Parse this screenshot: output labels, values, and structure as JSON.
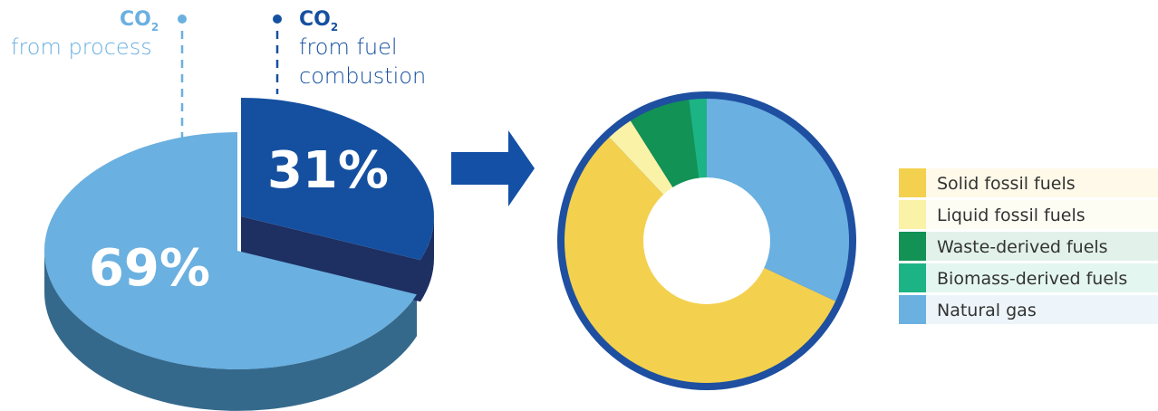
{
  "pie": {
    "co2_text": "CO",
    "co2_subscript": "2",
    "process_label": "from process",
    "fuel_label_line1": "from fuel",
    "fuel_label_line2": "combustion"
  },
  "colors": {
    "process": "#6AB0E0",
    "process_side": "#35698C",
    "combustion": "#1550A0",
    "combustion_side": "#1E2F62",
    "arrow": "#1450A6",
    "donut_ring": "#1E4FA0"
  },
  "chart_data": [
    {
      "type": "pie",
      "values": [
        69,
        31
      ],
      "labels": [
        "69%",
        "31%"
      ],
      "categories": [
        "CO2 from process",
        "CO2 from fuel combustion"
      ],
      "colors": [
        "#6AB0E0",
        "#1550A0"
      ]
    },
    {
      "type": "pie",
      "style": "donut",
      "categories": [
        "Solid fossil fuels",
        "Liquid fossil fuels",
        "Waste-derived fuels",
        "Biomass-derived fuels",
        "Natural gas"
      ],
      "values": [
        56,
        3,
        7,
        2,
        32
      ],
      "colors": [
        "#F3D14E",
        "#FAF2A6",
        "#129255",
        "#1DB485",
        "#6AB0E0"
      ],
      "legend_position": "right"
    }
  ]
}
